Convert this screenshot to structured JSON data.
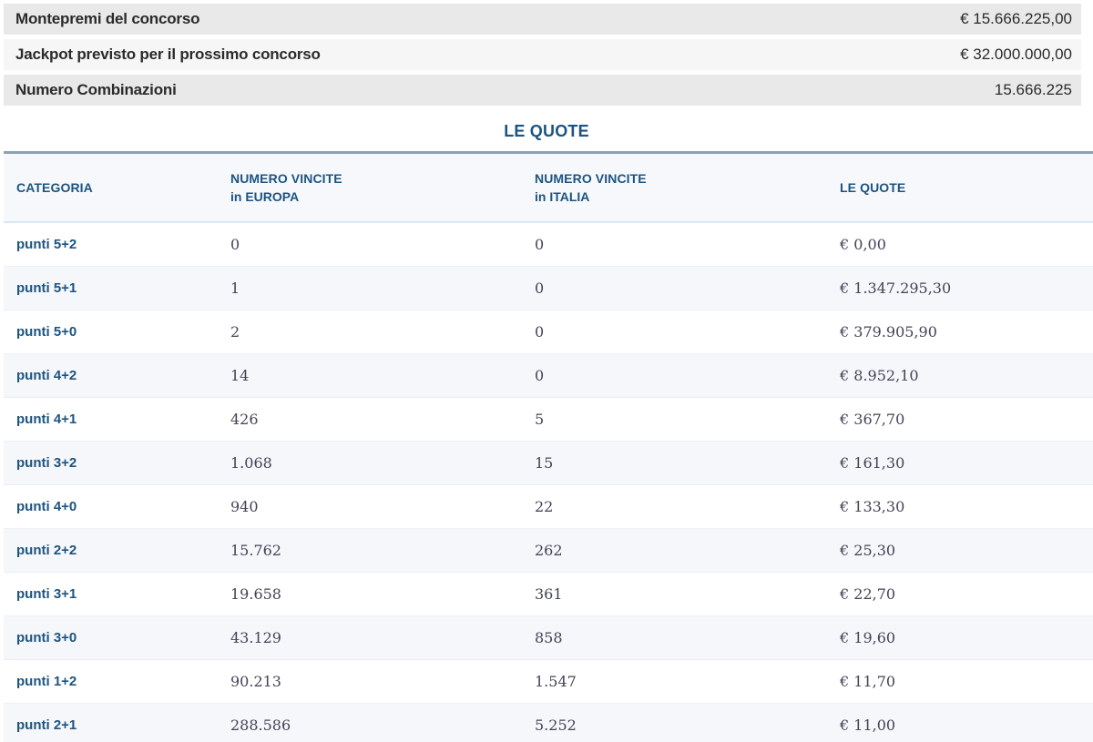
{
  "summary": {
    "rows": [
      {
        "label": "Montepremi del concorso",
        "value": "€ 15.666.225,00"
      },
      {
        "label": "Jackpot previsto per il prossimo concorso",
        "value": "€ 32.000.000,00"
      },
      {
        "label": "Numero Combinazioni",
        "value": "15.666.225"
      }
    ]
  },
  "quotes": {
    "title": "LE QUOTE",
    "columns": [
      {
        "label": "CATEGORIA",
        "sub": ""
      },
      {
        "label": "NUMERO VINCITE",
        "sub": "in EUROPA"
      },
      {
        "label": "NUMERO VINCITE",
        "sub": "in ITALIA"
      },
      {
        "label": "LE QUOTE",
        "sub": ""
      }
    ],
    "rows": [
      {
        "categoria": "punti 5+2",
        "vincite_europa": "0",
        "vincite_italia": "0",
        "quota": "€ 0,00"
      },
      {
        "categoria": "punti 5+1",
        "vincite_europa": "1",
        "vincite_italia": "0",
        "quota": "€ 1.347.295,30"
      },
      {
        "categoria": "punti 5+0",
        "vincite_europa": "2",
        "vincite_italia": "0",
        "quota": "€ 379.905,90"
      },
      {
        "categoria": "punti 4+2",
        "vincite_europa": "14",
        "vincite_italia": "0",
        "quota": "€ 8.952,10"
      },
      {
        "categoria": "punti 4+1",
        "vincite_europa": "426",
        "vincite_italia": "5",
        "quota": "€ 367,70"
      },
      {
        "categoria": "punti 3+2",
        "vincite_europa": "1.068",
        "vincite_italia": "15",
        "quota": "€ 161,30"
      },
      {
        "categoria": "punti 4+0",
        "vincite_europa": "940",
        "vincite_italia": "22",
        "quota": "€ 133,30"
      },
      {
        "categoria": "punti 2+2",
        "vincite_europa": "15.762",
        "vincite_italia": "262",
        "quota": "€ 25,30"
      },
      {
        "categoria": "punti 3+1",
        "vincite_europa": "19.658",
        "vincite_italia": "361",
        "quota": "€ 22,70"
      },
      {
        "categoria": "punti 3+0",
        "vincite_europa": "43.129",
        "vincite_italia": "858",
        "quota": "€ 19,60"
      },
      {
        "categoria": "punti 1+2",
        "vincite_europa": "90.213",
        "vincite_italia": "1.547",
        "quota": "€ 11,70"
      },
      {
        "categoria": "punti 2+1",
        "vincite_europa": "288.586",
        "vincite_italia": "5.252",
        "quota": "€ 11,00"
      }
    ]
  },
  "colors": {
    "accent_blue": "#1d5480",
    "title_blue": "#1b5381",
    "bar_gray": "#e9e9e9",
    "bar_light_gray": "#f6f6f6",
    "header_bg": "#f6f8fc",
    "row_stripe": "#f5f7fb",
    "rule_slate": "#8ba3b6",
    "rule_light_blue": "#d9e8f1",
    "number_text": "#424456",
    "dark_text": "#2b2b2b"
  }
}
